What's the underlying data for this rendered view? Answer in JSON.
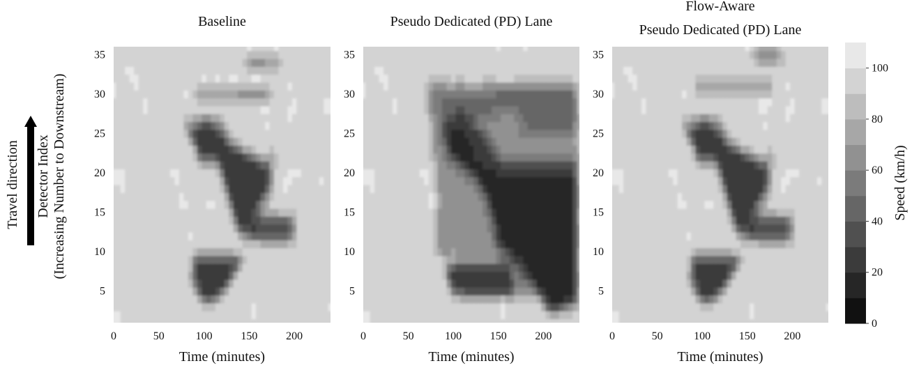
{
  "chart_data": [
    {
      "type": "heatmap",
      "title": "Baseline",
      "title_lines": [
        "Baseline"
      ],
      "xlabel": "Time (minutes)",
      "ylabel_lines": [
        "Detector Index",
        "(Increasing Number to Downstream)"
      ],
      "xlim": [
        0,
        240
      ],
      "ylim": [
        1,
        36
      ],
      "xticks": [
        "0",
        "50",
        "100",
        "150",
        "200"
      ],
      "yticks": [
        "5",
        "10",
        "15",
        "20",
        "25",
        "30",
        "35"
      ],
      "scenario": "baseline"
    },
    {
      "type": "heatmap",
      "title": "Pseudo Dedicated (PD) Lane",
      "title_lines": [
        "Pseudo Dedicated (PD) Lane"
      ],
      "xlabel": "Time (minutes)",
      "xlim": [
        0,
        240
      ],
      "ylim": [
        1,
        36
      ],
      "xticks": [
        "0",
        "50",
        "100",
        "150",
        "200"
      ],
      "yticks": [
        "5",
        "10",
        "15",
        "20",
        "25",
        "30",
        "35"
      ],
      "scenario": "pd"
    },
    {
      "type": "heatmap",
      "title": "Flow-Aware Pseudo Dedicated (PD) Lane",
      "title_lines": [
        "Flow-Aware",
        "Pseudo Dedicated (PD) Lane"
      ],
      "xlabel": "Time (minutes)",
      "xlim": [
        0,
        240
      ],
      "ylim": [
        1,
        36
      ],
      "xticks": [
        "0",
        "50",
        "100",
        "150",
        "200"
      ],
      "yticks": [
        "5",
        "10",
        "15",
        "20",
        "25",
        "30",
        "35"
      ],
      "scenario": "flow_aware"
    }
  ],
  "colorbar": {
    "label": "Speed (km/h)",
    "range": [
      0,
      110
    ],
    "levels": [
      0,
      10,
      20,
      30,
      40,
      50,
      60,
      70,
      80,
      90,
      100,
      110
    ],
    "ticks": [
      "0",
      "20",
      "40",
      "60",
      "80",
      "100"
    ],
    "colors": [
      "#111111",
      "#262626",
      "#3b3b3b",
      "#505050",
      "#666666",
      "#7b7b7b",
      "#919191",
      "#a7a7a7",
      "#bdbdbd",
      "#d3d3d3",
      "#e8e8e8"
    ]
  },
  "annotation": {
    "text": "Travel direction",
    "arrow": "up"
  }
}
